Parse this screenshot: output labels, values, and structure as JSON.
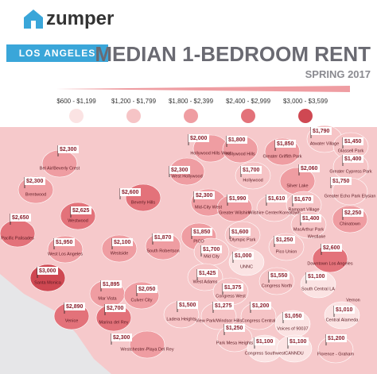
{
  "header": {
    "brand": "zumper",
    "city": "LOS ANGELES",
    "title": "MEDIAN 1-BEDROOM RENT",
    "subtitle": "SPRING 2017"
  },
  "legend": [
    {
      "label": "$600 - $1,199",
      "color": "#fbe3e3"
    },
    {
      "label": "$1,200 - $1,799",
      "color": "#f6c4c6"
    },
    {
      "label": "$1,800 - $2,399",
      "color": "#ef9da2"
    },
    {
      "label": "$2,400 - $2,999",
      "color": "#e3727a"
    },
    {
      "label": "$3,000 - $3,599",
      "color": "#cf4852"
    }
  ],
  "neighborhoods": [
    {
      "name": "Bel Air/Beverly Crest",
      "price": "$2,300"
    },
    {
      "name": "Brentwood",
      "price": "$2,300"
    },
    {
      "name": "Pacific Palisades",
      "price": "$2,650"
    },
    {
      "name": "Westwood",
      "price": "$2,625"
    },
    {
      "name": "Beverly Hills",
      "price": "$2,600"
    },
    {
      "name": "West Hollywood",
      "price": "$2,300"
    },
    {
      "name": "Hollywood Hills West",
      "price": "$2,000"
    },
    {
      "name": "Hollywood Hills",
      "price": "$1,800"
    },
    {
      "name": "Greater Griffith Park",
      "price": "$1,850"
    },
    {
      "name": "Atwater Village",
      "price": "$1,790"
    },
    {
      "name": "Glassell Park",
      "price": "$1,450"
    },
    {
      "name": "Greater Cypress Park",
      "price": "$1,400"
    },
    {
      "name": "Mid-City West",
      "price": "$2,300"
    },
    {
      "name": "Hollywood",
      "price": "$1,700"
    },
    {
      "name": "Silver Lake",
      "price": "$2,060"
    },
    {
      "name": "Greater Echo Park Elysian",
      "price": "$1,750"
    },
    {
      "name": "Greater Wilshire",
      "price": "$1,990"
    },
    {
      "name": "Wilshire Center/Koreatown",
      "price": "$1,610"
    },
    {
      "name": "Rampart Village",
      "price": "$1,670"
    },
    {
      "name": "Chinatown",
      "price": "$2,250"
    },
    {
      "name": "MacArthur Park",
      "price": "$1,400"
    },
    {
      "name": "West Los Angeles",
      "price": "$1,950"
    },
    {
      "name": "Westside",
      "price": "$2,100"
    },
    {
      "name": "South Robertson",
      "price": "$1,870"
    },
    {
      "name": "PICO",
      "price": "$1,850"
    },
    {
      "name": "Olympic Park",
      "price": "$1,600"
    },
    {
      "name": "Pico Union",
      "price": "$1,250"
    },
    {
      "name": "Mid City",
      "price": "$1,700"
    },
    {
      "name": "Downtown Los Angeles",
      "price": "$2,600"
    },
    {
      "name": "UNNC",
      "price": "$1,000"
    },
    {
      "name": "West Adams",
      "price": "$1,425"
    },
    {
      "name": "Santa Monica",
      "price": "$3,000"
    },
    {
      "name": "Mar Vista",
      "price": "$1,895"
    },
    {
      "name": "Culver City",
      "price": "$2,050"
    },
    {
      "name": "Congress West",
      "price": "$1,375"
    },
    {
      "name": "Congress North",
      "price": "$1,550"
    },
    {
      "name": "South Central LA",
      "price": "$1,100"
    },
    {
      "name": "Venice",
      "price": "$2,890"
    },
    {
      "name": "Marina del Rey",
      "price": "$2,700"
    },
    {
      "name": "Ladera Heights",
      "price": "$1,500"
    },
    {
      "name": "View Park/Windsor Hills",
      "price": "$1,275"
    },
    {
      "name": "Congress Central",
      "price": "$1,200"
    },
    {
      "name": "Voices of 90037",
      "price": "$1,050"
    },
    {
      "name": "Central Alameda",
      "price": "$1,010"
    },
    {
      "name": "Westchester-Playa Del Rey",
      "price": "$2,300"
    },
    {
      "name": "Park Mesa Heights",
      "price": "$1,250"
    },
    {
      "name": "Congress Southwest",
      "price": "$1,100"
    },
    {
      "name": "CANNDU",
      "price": "$1,100"
    },
    {
      "name": "Florence - Graham",
      "price": "$1,200"
    }
  ],
  "places": [
    "Westlake",
    "Vernon"
  ]
}
